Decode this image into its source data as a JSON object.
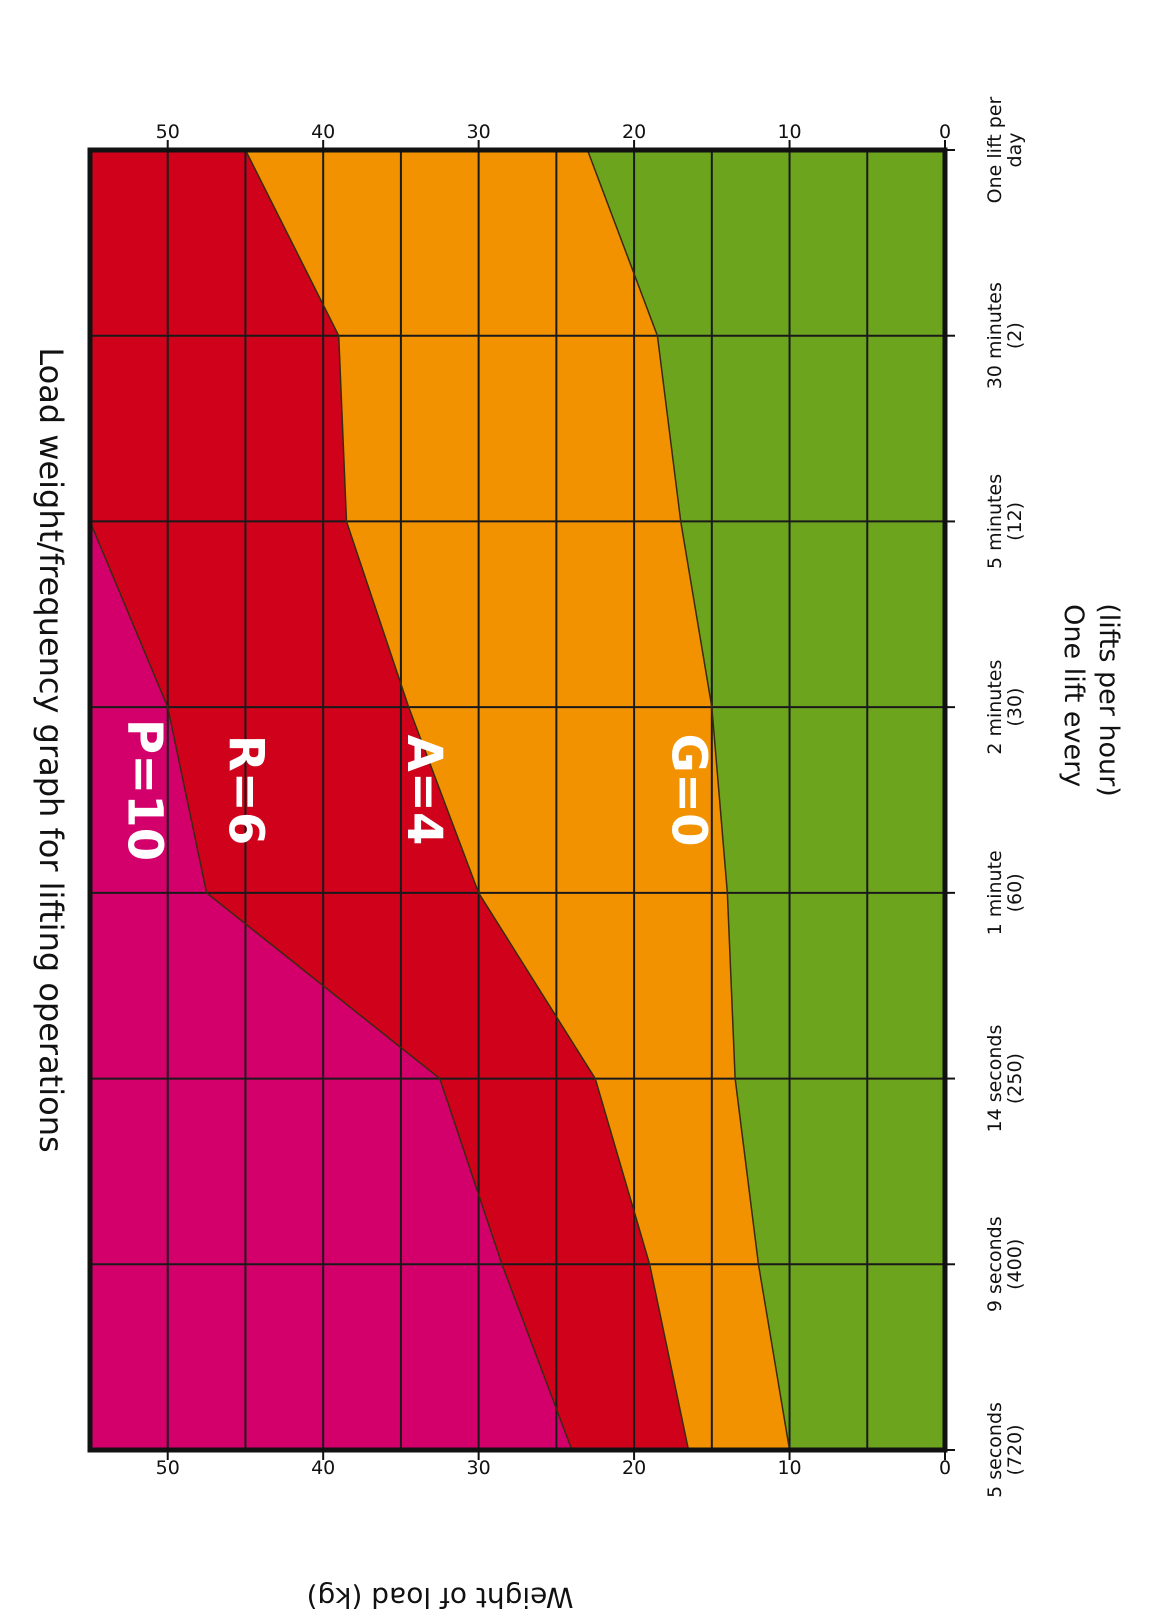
{
  "chart_data": {
    "type": "area",
    "title": "Load weight/frequency graph for lifting operations",
    "xlabel": [
      "One lift every",
      "(lifts per hour)"
    ],
    "ylabel": "Weight of load (kg)",
    "categories": [
      [
        "One lift per",
        "day"
      ],
      [
        "30 minutes",
        "(2)"
      ],
      [
        "5 minutes",
        "(12)"
      ],
      [
        "2 minutes",
        "(30)"
      ],
      [
        "1 minute",
        "(60)"
      ],
      [
        "14 seconds",
        "(250)"
      ],
      [
        "9 seconds",
        "(400)"
      ],
      [
        "5 seconds",
        "(720)"
      ]
    ],
    "ylim": [
      0,
      55
    ],
    "yticks": [
      0,
      10,
      20,
      30,
      40,
      50
    ],
    "grid_step": 5,
    "boundaries": [
      {
        "name": "G/A",
        "values": [
          23,
          18.5,
          17,
          15,
          14,
          13.5,
          12,
          10
        ]
      },
      {
        "name": "A/R",
        "values": [
          45,
          39,
          38.5,
          34.5,
          30,
          22.5,
          19,
          16.5
        ]
      },
      {
        "name": "R/P",
        "values": [
          55,
          55,
          55,
          50,
          47.5,
          32.5,
          28.5,
          24
        ]
      }
    ],
    "zones": [
      {
        "label": "G=0",
        "color": "#6ca41e",
        "text_color": "#ffffff"
      },
      {
        "label": "A=4",
        "color": "#f39200",
        "text_color": "#ffffff"
      },
      {
        "label": "R=6",
        "color": "#d0021b",
        "text_color": "#ffffff"
      },
      {
        "label": "P=10",
        "color": "#d3006c",
        "text_color": "#ffffff"
      }
    ],
    "grid": true,
    "orientation": "rotated-90-clockwise"
  }
}
